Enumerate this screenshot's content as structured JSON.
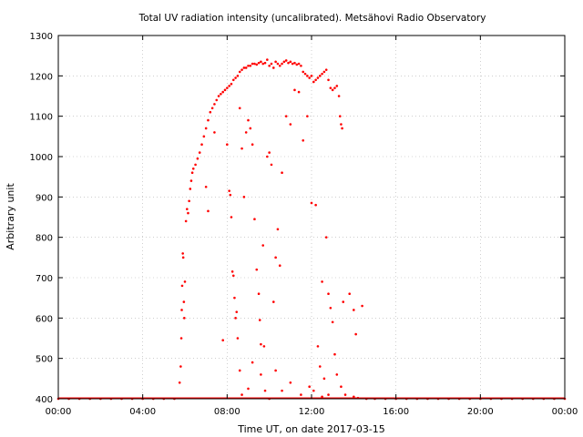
{
  "chart_data": {
    "type": "scatter",
    "title": "Total UV radiation intensity (uncalibrated). Metsähovi Radio Observatory",
    "xlabel": "Time UT, on date 2017-03-15",
    "ylabel": "Arbitrary unit",
    "xlim": [
      0,
      24
    ],
    "ylim": [
      400,
      1300
    ],
    "x_unit": "hours UT",
    "x_ticks": [
      0,
      4,
      8,
      12,
      16,
      20,
      24
    ],
    "x_tick_labels": [
      "00:00",
      "04:00",
      "08:00",
      "12:00",
      "16:00",
      "20:00",
      "00:00"
    ],
    "y_ticks": [
      400,
      500,
      600,
      700,
      800,
      900,
      1000,
      1100,
      1200,
      1300
    ],
    "y_tick_labels": [
      "400",
      "500",
      "600",
      "700",
      "800",
      "900",
      "1000",
      "1100",
      "1200",
      "1300"
    ],
    "grid": true,
    "legend": "none",
    "color": "#ff0000",
    "series": [
      {
        "points": [
          [
            0.0,
            400
          ],
          [
            0.5,
            400
          ],
          [
            1.0,
            400
          ],
          [
            1.5,
            400
          ],
          [
            2.0,
            400
          ],
          [
            2.5,
            400
          ],
          [
            3.0,
            400
          ],
          [
            3.5,
            400
          ],
          [
            4.0,
            400
          ],
          [
            4.5,
            400
          ],
          [
            5.0,
            400
          ],
          [
            5.5,
            400
          ],
          [
            5.75,
            440
          ],
          [
            5.8,
            480
          ],
          [
            5.83,
            550
          ],
          [
            5.85,
            620
          ],
          [
            5.87,
            680
          ],
          [
            5.9,
            760
          ],
          [
            5.92,
            750
          ],
          [
            5.95,
            640
          ],
          [
            5.97,
            600
          ],
          [
            6.0,
            690
          ],
          [
            6.05,
            840
          ],
          [
            6.1,
            870
          ],
          [
            6.15,
            860
          ],
          [
            6.2,
            890
          ],
          [
            6.25,
            920
          ],
          [
            6.3,
            940
          ],
          [
            6.35,
            960
          ],
          [
            6.4,
            970
          ],
          [
            6.5,
            980
          ],
          [
            6.6,
            995
          ],
          [
            6.7,
            1010
          ],
          [
            6.8,
            1030
          ],
          [
            6.9,
            1050
          ],
          [
            7.0,
            1070
          ],
          [
            7.1,
            1090
          ],
          [
            7.2,
            1110
          ],
          [
            7.3,
            1120
          ],
          [
            7.4,
            1130
          ],
          [
            7.5,
            1140
          ],
          [
            7.6,
            1150
          ],
          [
            7.7,
            1155
          ],
          [
            7.8,
            1160
          ],
          [
            7.9,
            1165
          ],
          [
            8.0,
            1170
          ],
          [
            8.1,
            1175
          ],
          [
            8.2,
            1180
          ],
          [
            8.3,
            1190
          ],
          [
            8.4,
            1195
          ],
          [
            8.5,
            1200
          ],
          [
            8.6,
            1210
          ],
          [
            8.7,
            1215
          ],
          [
            8.8,
            1220
          ],
          [
            8.9,
            1220
          ],
          [
            9.0,
            1225
          ],
          [
            9.1,
            1225
          ],
          [
            9.2,
            1230
          ],
          [
            9.3,
            1230
          ],
          [
            9.4,
            1228
          ],
          [
            9.5,
            1232
          ],
          [
            9.6,
            1235
          ],
          [
            9.7,
            1230
          ],
          [
            9.8,
            1232
          ],
          [
            9.9,
            1240
          ],
          [
            10.0,
            1225
          ],
          [
            10.1,
            1230
          ],
          [
            10.2,
            1220
          ],
          [
            10.3,
            1235
          ],
          [
            10.4,
            1230
          ],
          [
            10.5,
            1225
          ],
          [
            10.6,
            1230
          ],
          [
            10.7,
            1235
          ],
          [
            10.8,
            1238
          ],
          [
            10.9,
            1232
          ],
          [
            11.0,
            1235
          ],
          [
            11.1,
            1230
          ],
          [
            11.2,
            1232
          ],
          [
            11.3,
            1228
          ],
          [
            11.4,
            1230
          ],
          [
            11.5,
            1225
          ],
          [
            11.6,
            1210
          ],
          [
            11.7,
            1205
          ],
          [
            11.8,
            1200
          ],
          [
            11.9,
            1195
          ],
          [
            12.0,
            1200
          ],
          [
            12.1,
            1185
          ],
          [
            12.2,
            1190
          ],
          [
            12.3,
            1195
          ],
          [
            12.4,
            1200
          ],
          [
            12.5,
            1205
          ],
          [
            12.6,
            1210
          ],
          [
            12.7,
            1215
          ],
          [
            12.8,
            1190
          ],
          [
            12.9,
            1170
          ],
          [
            13.0,
            1165
          ],
          [
            13.1,
            1170
          ],
          [
            13.2,
            1175
          ],
          [
            13.3,
            1150
          ],
          [
            13.35,
            1100
          ],
          [
            13.4,
            1080
          ],
          [
            13.45,
            1070
          ],
          [
            7.0,
            925
          ],
          [
            7.1,
            865
          ],
          [
            7.4,
            1060
          ],
          [
            7.8,
            545
          ],
          [
            8.0,
            1030
          ],
          [
            8.1,
            915
          ],
          [
            8.15,
            905
          ],
          [
            8.2,
            850
          ],
          [
            8.25,
            715
          ],
          [
            8.3,
            705
          ],
          [
            8.35,
            650
          ],
          [
            8.4,
            600
          ],
          [
            8.45,
            615
          ],
          [
            8.5,
            550
          ],
          [
            8.6,
            1120
          ],
          [
            8.7,
            1020
          ],
          [
            8.8,
            900
          ],
          [
            8.9,
            1060
          ],
          [
            9.0,
            1090
          ],
          [
            9.1,
            1070
          ],
          [
            9.2,
            1030
          ],
          [
            9.3,
            845
          ],
          [
            9.4,
            720
          ],
          [
            9.5,
            660
          ],
          [
            9.55,
            595
          ],
          [
            9.6,
            535
          ],
          [
            9.7,
            780
          ],
          [
            9.75,
            530
          ],
          [
            9.8,
            420
          ],
          [
            9.9,
            1000
          ],
          [
            10.0,
            1010
          ],
          [
            10.1,
            980
          ],
          [
            10.2,
            640
          ],
          [
            10.3,
            750
          ],
          [
            10.4,
            820
          ],
          [
            10.5,
            730
          ],
          [
            10.6,
            960
          ],
          [
            10.8,
            1100
          ],
          [
            11.0,
            1080
          ],
          [
            11.2,
            1165
          ],
          [
            11.4,
            1160
          ],
          [
            11.6,
            1040
          ],
          [
            11.8,
            1100
          ],
          [
            12.0,
            885
          ],
          [
            12.2,
            880
          ],
          [
            12.3,
            530
          ],
          [
            12.4,
            480
          ],
          [
            12.5,
            690
          ],
          [
            12.6,
            450
          ],
          [
            12.7,
            800
          ],
          [
            12.8,
            660
          ],
          [
            12.9,
            625
          ],
          [
            13.0,
            590
          ],
          [
            13.1,
            510
          ],
          [
            13.2,
            460
          ],
          [
            13.5,
            640
          ],
          [
            13.8,
            660
          ],
          [
            14.0,
            620
          ],
          [
            14.1,
            560
          ],
          [
            14.4,
            630
          ],
          [
            8.6,
            470
          ],
          [
            8.7,
            410
          ],
          [
            9.0,
            425
          ],
          [
            9.2,
            490
          ],
          [
            9.6,
            460
          ],
          [
            10.0,
            400
          ],
          [
            10.3,
            470
          ],
          [
            10.6,
            420
          ],
          [
            11.0,
            440
          ],
          [
            11.5,
            410
          ],
          [
            11.9,
            430
          ],
          [
            12.1,
            420
          ],
          [
            12.5,
            405
          ],
          [
            12.8,
            410
          ],
          [
            13.4,
            430
          ],
          [
            13.6,
            410
          ],
          [
            14.0,
            405
          ],
          [
            14.2,
            402
          ],
          [
            14.6,
            400
          ],
          [
            15.0,
            400
          ],
          [
            15.5,
            400
          ],
          [
            16.0,
            400
          ],
          [
            16.5,
            400
          ],
          [
            17.0,
            400
          ],
          [
            17.5,
            400
          ],
          [
            18.0,
            400
          ],
          [
            18.5,
            400
          ],
          [
            19.0,
            400
          ],
          [
            19.5,
            400
          ],
          [
            20.0,
            400
          ],
          [
            20.5,
            400
          ],
          [
            21.0,
            400
          ],
          [
            21.5,
            400
          ],
          [
            22.0,
            400
          ],
          [
            22.5,
            400
          ],
          [
            23.0,
            400
          ],
          [
            23.5,
            400
          ],
          [
            24.0,
            400
          ]
        ]
      }
    ]
  }
}
